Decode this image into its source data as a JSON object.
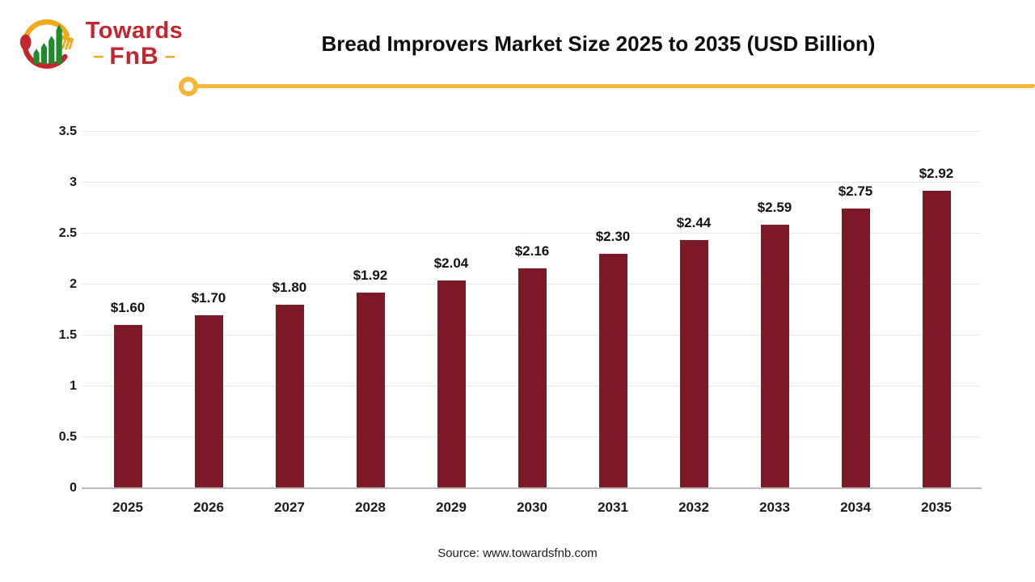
{
  "logo": {
    "word1": "Towards",
    "word2": "FnB",
    "dash": "–"
  },
  "header": {
    "title": "Bread Improvers Market Size 2025 to 2035 (USD Billion)"
  },
  "footer": {
    "source": "Source: www.towardsfnb.com"
  },
  "colors": {
    "bar": "#7E1A28",
    "divider_gold": "#F5B63A",
    "logo_red": "#C1272D",
    "logo_gold": "#F0A81C",
    "logo_green": "#1F8B2C",
    "gridline": "#E9E9E9",
    "axis": "#B9B9B9"
  },
  "chart_data": {
    "type": "bar",
    "title": "Bread Improvers Market Size 2025 to 2035 (USD Billion)",
    "categories": [
      "2025",
      "2026",
      "2027",
      "2028",
      "2029",
      "2030",
      "2031",
      "2032",
      "2033",
      "2034",
      "2035"
    ],
    "values": [
      1.6,
      1.7,
      1.8,
      1.92,
      2.04,
      2.16,
      2.3,
      2.44,
      2.59,
      2.75,
      2.92
    ],
    "data_labels": [
      "$1.60",
      "$1.70",
      "$1.80",
      "$1.92",
      "$2.04",
      "$2.16",
      "$2.30",
      "$2.44",
      "$2.59",
      "$2.75",
      "$2.92"
    ],
    "xlabel": "",
    "ylabel": "",
    "ylim": [
      0,
      3.5
    ],
    "ytick_values": [
      0,
      0.5,
      1,
      1.5,
      2,
      2.5,
      3,
      3.5
    ],
    "ytick_labels": [
      "0",
      "0.5",
      "1",
      "1.5",
      "2",
      "2.5",
      "3",
      "3.5"
    ],
    "grid": true,
    "legend": false
  }
}
